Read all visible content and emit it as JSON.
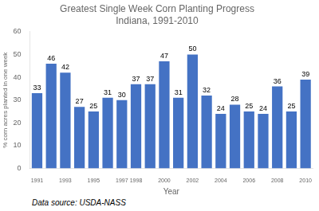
{
  "chart_data": {
    "type": "bar",
    "title": "Greatest Single Week Corn Planting Progress",
    "subtitle": "Indiana, 1991-2010",
    "x_label": "Year",
    "y_label": "% corn acres planted in one week",
    "categories": [
      "1991",
      null,
      "1993",
      null,
      "1995",
      null,
      "1997",
      "1998",
      null,
      "2000",
      null,
      "2002",
      null,
      "2004",
      null,
      "2006",
      null,
      "2008",
      null,
      "2010"
    ],
    "values": [
      33,
      46,
      42,
      27,
      25,
      31,
      30,
      37,
      37,
      47,
      31,
      50,
      32,
      24,
      28,
      25,
      24,
      36,
      25,
      39
    ],
    "color": "#4472C4",
    "ylim": [
      0,
      60
    ],
    "yticks": [
      0,
      10,
      20,
      30,
      40,
      50,
      60
    ],
    "grid": false,
    "data_labels": true,
    "annotations": [
      "Data source: USDA-NASS"
    ]
  }
}
